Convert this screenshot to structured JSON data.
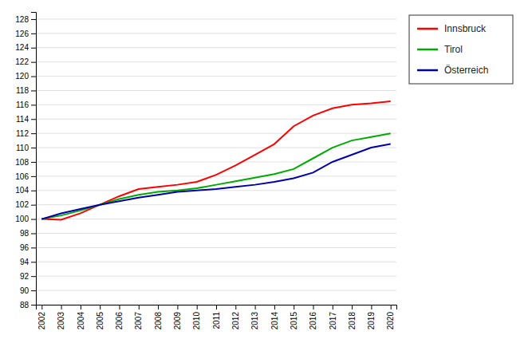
{
  "chart_data": {
    "type": "line",
    "x": [
      2002,
      2003,
      2004,
      2005,
      2006,
      2007,
      2008,
      2009,
      2010,
      2011,
      2012,
      2013,
      2014,
      2015,
      2016,
      2017,
      2018,
      2019,
      2020
    ],
    "series": [
      {
        "name": "Innsbruck",
        "color": "#FF0000",
        "values": [
          100.0,
          99.9,
          100.8,
          102.0,
          103.2,
          104.2,
          104.5,
          104.8,
          105.2,
          106.2,
          107.5,
          109.0,
          110.5,
          113.0,
          114.5,
          115.5,
          116.0,
          116.2,
          116.5
        ]
      },
      {
        "name": "Tirol",
        "color": "#00AA00",
        "values": [
          100.0,
          100.5,
          101.2,
          102.0,
          102.8,
          103.4,
          103.8,
          104.0,
          104.3,
          104.8,
          105.3,
          105.8,
          106.3,
          107.0,
          108.5,
          110.0,
          111.0,
          111.5,
          112.0
        ]
      },
      {
        "name": "Österreich",
        "color": "#0000AA",
        "values": [
          100.0,
          100.8,
          101.4,
          102.0,
          102.5,
          103.0,
          103.4,
          103.8,
          104.0,
          104.2,
          104.5,
          104.8,
          105.2,
          105.7,
          106.5,
          108.0,
          109.0,
          110.0,
          110.5
        ]
      }
    ],
    "xlim": [
      2001.7,
      2020.3
    ],
    "xticks": [
      2002,
      2003,
      2004,
      2005,
      2006,
      2007,
      2008,
      2009,
      2010,
      2011,
      2012,
      2013,
      2014,
      2015,
      2016,
      2017,
      2018,
      2019,
      2020
    ],
    "ylim": [
      88,
      129
    ],
    "yticks": [
      88,
      90,
      92,
      94,
      96,
      98,
      100,
      102,
      104,
      106,
      108,
      110,
      112,
      114,
      116,
      118,
      120,
      122,
      124,
      126,
      128
    ],
    "grid": true,
    "legend": "right"
  }
}
